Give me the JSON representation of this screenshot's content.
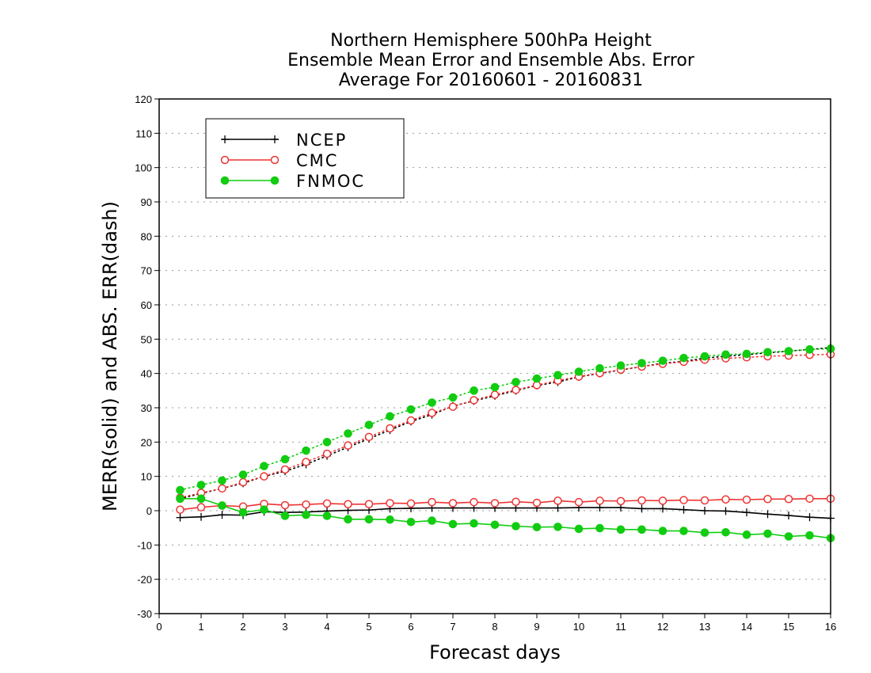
{
  "chart_data": {
    "type": "line",
    "title": [
      "Northern Hemisphere 500hPa Height",
      "Ensemble Mean Error and Ensemble Abs. Error",
      "Average For 20160601 - 20160831"
    ],
    "xlabel": "Forecast days",
    "ylabel": "MERR(solid) and ABS. ERR(dash)",
    "xlim": [
      0,
      16
    ],
    "ylim": [
      -30,
      120
    ],
    "x_ticks": [
      "0",
      "1",
      "2",
      "3",
      "4",
      "5",
      "6",
      "7",
      "8",
      "9",
      "10",
      "11",
      "12",
      "13",
      "14",
      "15",
      "16"
    ],
    "y_ticks": [
      "-30",
      "-20",
      "-10",
      "0",
      "10",
      "20",
      "30",
      "40",
      "50",
      "60",
      "70",
      "80",
      "90",
      "100",
      "110",
      "120"
    ],
    "grid": "horizontal dotted",
    "legend_position": "top-left",
    "x": [
      0.5,
      1,
      1.5,
      2,
      2.5,
      3,
      3.5,
      4,
      4.5,
      5,
      5.5,
      6,
      6.5,
      7,
      7.5,
      8,
      8.5,
      9,
      9.5,
      10,
      10.5,
      11,
      11.5,
      12,
      12.5,
      13,
      13.5,
      14,
      14.5,
      15,
      15.5,
      16
    ],
    "series": [
      {
        "name": "NCEP",
        "color": "#000000",
        "marker": "plus",
        "merr": [
          -2,
          -1.8,
          -1.2,
          -1.3,
          -0.3,
          -0.5,
          -0.4,
          -0.1,
          0.1,
          0.2,
          0.6,
          0.7,
          0.8,
          0.8,
          0.8,
          0.8,
          0.8,
          0.8,
          0.8,
          0.9,
          0.9,
          0.9,
          0.6,
          0.6,
          0.3,
          0,
          -0.1,
          -0.5,
          -1,
          -1.4,
          -1.9,
          -2.2
        ],
        "abs_err": [
          3.5,
          5,
          6.5,
          8,
          10,
          11.5,
          13.5,
          16,
          18.5,
          21,
          23.5,
          26,
          28,
          30.5,
          32,
          33.5,
          35,
          36.5,
          37.5,
          39,
          40,
          41,
          42,
          43,
          43.5,
          44.5,
          45,
          45.5,
          46,
          46.5,
          47,
          47.5
        ]
      },
      {
        "name": "CMC",
        "color": "#ee3333",
        "marker": "open-circle",
        "merr": [
          0.3,
          1,
          1.5,
          1.2,
          2,
          1.6,
          1.8,
          2.1,
          1.9,
          1.9,
          2.2,
          2.1,
          2.5,
          2.2,
          2.5,
          2.2,
          2.6,
          2.3,
          2.9,
          2.5,
          2.9,
          2.8,
          3,
          2.9,
          3.1,
          3,
          3.3,
          3.2,
          3.4,
          3.4,
          3.5,
          3.5
        ],
        "abs_err": [
          3.8,
          5.2,
          6.5,
          8.3,
          10,
          12,
          14.2,
          16.6,
          19,
          21.5,
          24,
          26.3,
          28.5,
          30.3,
          32.2,
          33.8,
          35.2,
          36.6,
          37.9,
          39.1,
          40.1,
          41.1,
          42,
          42.8,
          43.4,
          44,
          44.4,
          44.7,
          45,
          45.2,
          45.4,
          45.6
        ]
      },
      {
        "name": "FNMOC",
        "color": "#11cc11",
        "marker": "filled-circle",
        "merr": [
          3.5,
          3.5,
          1.5,
          -0.5,
          0.3,
          -1.5,
          -1.2,
          -1.5,
          -2.5,
          -2.5,
          -2.6,
          -3.3,
          -2.9,
          -3.9,
          -3.7,
          -4.1,
          -4.5,
          -4.8,
          -4.7,
          -5.3,
          -5.1,
          -5.5,
          -5.5,
          -5.9,
          -5.9,
          -6.4,
          -6.3,
          -7,
          -6.7,
          -7.5,
          -7.2,
          -8
        ],
        "abs_err": [
          6,
          7.5,
          8.8,
          10.5,
          13,
          15,
          17.5,
          20,
          22.5,
          25,
          27.5,
          29.5,
          31.5,
          33,
          35,
          36,
          37.5,
          38.5,
          39.5,
          40.5,
          41.5,
          42.3,
          43,
          43.7,
          44.5,
          45,
          45.5,
          45.7,
          46.2,
          46.5,
          47,
          47.2
        ]
      }
    ]
  }
}
